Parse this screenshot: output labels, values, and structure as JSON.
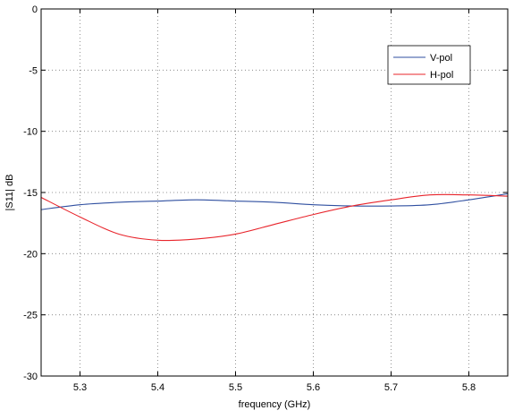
{
  "chart_data": {
    "type": "line",
    "title": "",
    "xlabel": "frequency (GHz)",
    "ylabel": "|S11| dB",
    "xlim": [
      5.25,
      5.85
    ],
    "ylim": [
      -30,
      0
    ],
    "xticks": [
      5.3,
      5.4,
      5.5,
      5.6,
      5.7,
      5.8
    ],
    "xtick_labels": [
      "5.3",
      "5.4",
      "5.5",
      "5.6",
      "5.7",
      "5.8"
    ],
    "yticks": [
      0,
      -5,
      -10,
      -15,
      -20,
      -25,
      -30
    ],
    "ytick_labels": [
      "0",
      "-5",
      "-10",
      "-15",
      "-20",
      "-25",
      "-30"
    ],
    "grid": true,
    "grid_style": "dotted",
    "legend_position": "top-right",
    "series": [
      {
        "name": "V-pol",
        "color": "#2f4fa0",
        "x": [
          5.25,
          5.3,
          5.35,
          5.4,
          5.45,
          5.5,
          5.55,
          5.6,
          5.65,
          5.7,
          5.75,
          5.8,
          5.85
        ],
        "y": [
          -16.4,
          -16.0,
          -15.8,
          -15.7,
          -15.6,
          -15.7,
          -15.8,
          -16.0,
          -16.1,
          -16.1,
          -16.0,
          -15.6,
          -15.1
        ]
      },
      {
        "name": "H-pol",
        "color": "#e8242b",
        "x": [
          5.25,
          5.3,
          5.35,
          5.4,
          5.45,
          5.5,
          5.55,
          5.6,
          5.65,
          5.7,
          5.75,
          5.8,
          5.85
        ],
        "y": [
          -15.4,
          -17.0,
          -18.4,
          -18.9,
          -18.8,
          -18.4,
          -17.6,
          -16.8,
          -16.1,
          -15.6,
          -15.2,
          -15.2,
          -15.3
        ]
      }
    ]
  }
}
